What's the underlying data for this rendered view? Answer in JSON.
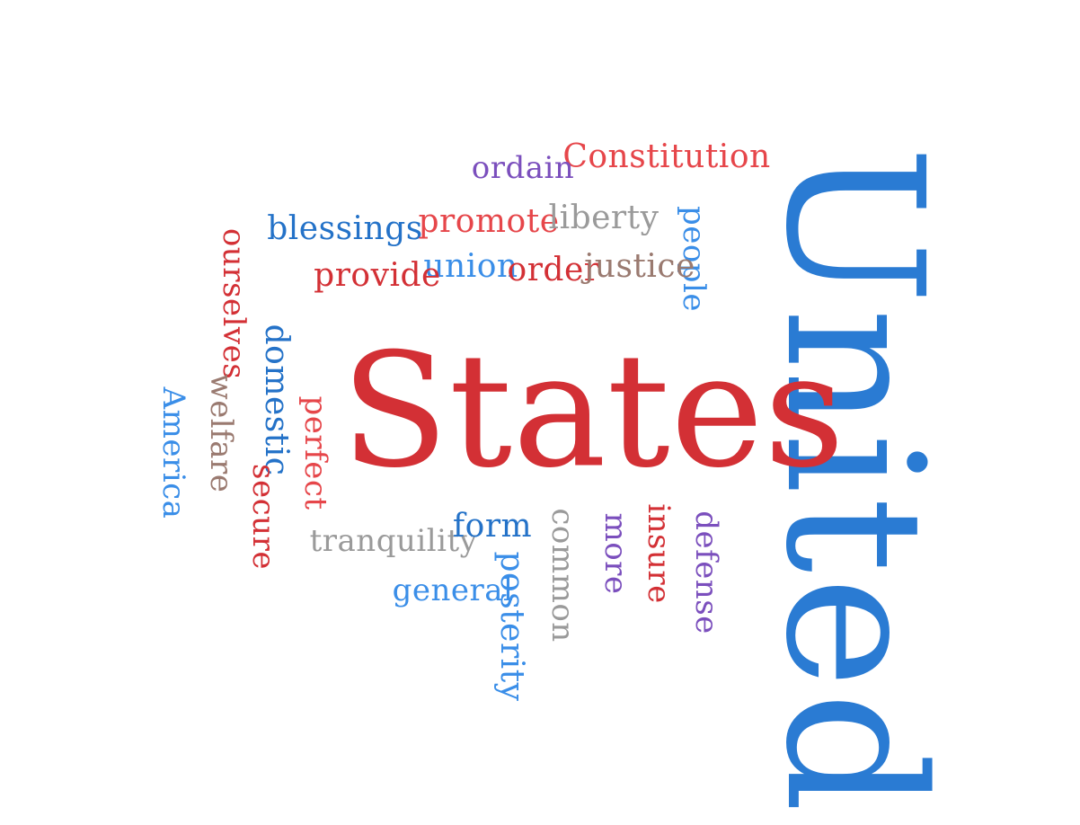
{
  "word_cloud": {
    "words": {
      "united": {
        "text": "United",
        "color": "#2a7bd3"
      },
      "states": {
        "text": "States",
        "color": "#d33035"
      },
      "constitution": {
        "text": "Constitution",
        "color": "#e6464a"
      },
      "ordain": {
        "text": "ordain",
        "color": "#7b4fbd"
      },
      "blessings": {
        "text": "blessings",
        "color": "#2472c8"
      },
      "promote": {
        "text": "promote",
        "color": "#e6464a"
      },
      "liberty": {
        "text": "liberty",
        "color": "#9a9a9a"
      },
      "people": {
        "text": "people",
        "color": "#3a8ee8"
      },
      "ourselves": {
        "text": "ourselves",
        "color": "#d33035"
      },
      "union": {
        "text": "union",
        "color": "#3a8ee8"
      },
      "provide": {
        "text": "provide",
        "color": "#d33035"
      },
      "order": {
        "text": "order",
        "color": "#d33035"
      },
      "justice": {
        "text": "justice",
        "color": "#9a7a70"
      },
      "domestic": {
        "text": "domestic",
        "color": "#2472c8"
      },
      "welfare": {
        "text": "welfare",
        "color": "#9a7a70"
      },
      "america": {
        "text": "America",
        "color": "#3a8ee8"
      },
      "perfect": {
        "text": "perfect",
        "color": "#e6464a"
      },
      "secure": {
        "text": "secure",
        "color": "#d33035"
      },
      "tranquility": {
        "text": "tranquility",
        "color": "#9a9a9a"
      },
      "form": {
        "text": "form",
        "color": "#2472c8"
      },
      "common": {
        "text": "common",
        "color": "#9a9a9a"
      },
      "more": {
        "text": "more",
        "color": "#7b4fbd"
      },
      "insure": {
        "text": "insure",
        "color": "#d33035"
      },
      "defense": {
        "text": "defense",
        "color": "#7b4fbd"
      },
      "general": {
        "text": "general",
        "color": "#3a8ee8"
      },
      "posterity": {
        "text": "posterity",
        "color": "#3a8ee8"
      }
    }
  }
}
